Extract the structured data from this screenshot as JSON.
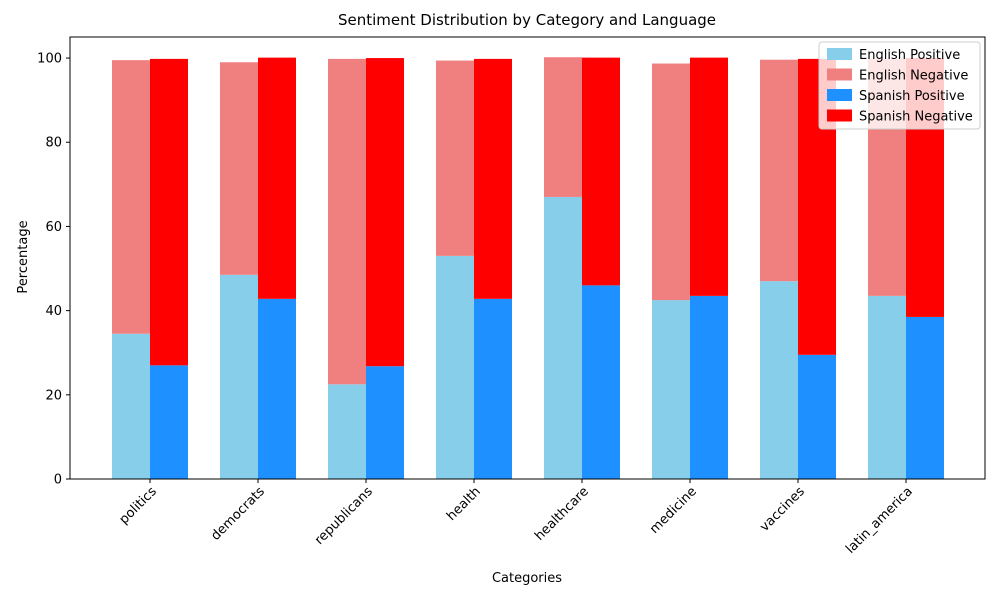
{
  "chart_data": {
    "type": "bar",
    "title": "Sentiment Distribution by Category and Language",
    "xlabel": "Categories",
    "ylabel": "Percentage",
    "ylim": [
      0,
      105
    ],
    "yticks": [
      0,
      20,
      40,
      60,
      80,
      100
    ],
    "grid": false,
    "legend_position": "top-right",
    "categories": [
      "politics",
      "democrats",
      "republicans",
      "health",
      "healthcare",
      "medicine",
      "vaccines",
      "latin_america"
    ],
    "series": [
      {
        "name": "English Positive",
        "language": "English",
        "color": "#87CEEB",
        "values": [
          34.5,
          48.5,
          22.5,
          53.0,
          67.0,
          42.5,
          47.0,
          43.5
        ]
      },
      {
        "name": "English Negative",
        "language": "English",
        "color": "#F08080",
        "values": [
          65.0,
          50.5,
          77.3,
          46.4,
          33.2,
          56.2,
          52.6,
          56.3
        ]
      },
      {
        "name": "Spanish Positive",
        "language": "Spanish",
        "color": "#1E90FF",
        "values": [
          27.0,
          42.8,
          26.8,
          42.8,
          46.0,
          43.5,
          29.5,
          38.5
        ]
      },
      {
        "name": "Spanish Negative",
        "language": "Spanish",
        "color": "#FF0000",
        "values": [
          72.8,
          57.3,
          73.2,
          57.0,
          54.1,
          56.6,
          70.3,
          61.5
        ]
      }
    ]
  }
}
